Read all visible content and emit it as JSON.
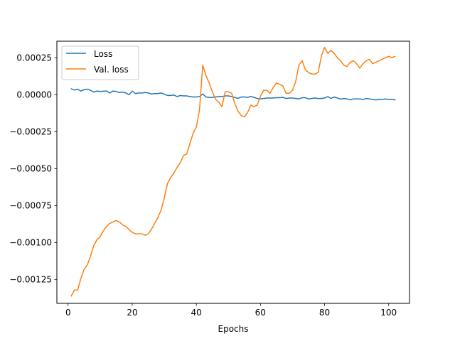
{
  "chart_data": {
    "type": "line",
    "title": "",
    "xlabel": "Epochs",
    "ylabel": "",
    "xlim": [
      -3.5,
      106.5
    ],
    "ylim": [
      -0.00141,
      0.000362
    ],
    "x_ticks": [
      0,
      20,
      40,
      60,
      80,
      100
    ],
    "x_tick_labels": [
      "0",
      "20",
      "40",
      "60",
      "80",
      "100"
    ],
    "y_ticks": [
      -0.00125,
      -0.001,
      -0.00075,
      -0.0005,
      -0.00025,
      0,
      0.00025
    ],
    "y_tick_labels": [
      "−0.00125",
      "−0.00100",
      "−0.00075",
      "−0.00050",
      "−0.00025",
      "0.00000",
      "0.00025"
    ],
    "grid": false,
    "legend_position": "upper left",
    "series": [
      {
        "name": "Loss",
        "color": "#1f77b4",
        "x": [
          1,
          2,
          3,
          4,
          5,
          6,
          7,
          8,
          9,
          10,
          11,
          12,
          13,
          14,
          15,
          16,
          17,
          18,
          19,
          20,
          21,
          22,
          23,
          24,
          25,
          26,
          27,
          28,
          29,
          30,
          31,
          32,
          33,
          34,
          35,
          36,
          37,
          38,
          39,
          40,
          41,
          42,
          43,
          44,
          45,
          46,
          47,
          48,
          49,
          50,
          51,
          52,
          53,
          54,
          55,
          56,
          57,
          58,
          59,
          60,
          61,
          62,
          63,
          64,
          65,
          66,
          67,
          68,
          69,
          70,
          71,
          72,
          73,
          74,
          75,
          76,
          77,
          78,
          79,
          80,
          81,
          82,
          83,
          84,
          85,
          86,
          87,
          88,
          89,
          90,
          91,
          92,
          93,
          94,
          95,
          96,
          97,
          98,
          99,
          100,
          101,
          102
        ],
        "y": [
          4e-05,
          3.2e-05,
          3.8e-05,
          2.5e-05,
          3.5e-05,
          3.8e-05,
          3e-05,
          1.8e-05,
          2.5e-05,
          2.2e-05,
          2.4e-05,
          2.5e-05,
          1.2e-05,
          2.5e-05,
          2.2e-05,
          1.5e-05,
          1.8e-05,
          1.2e-05,
          0.0,
          2.5e-05,
          8e-06,
          1.2e-05,
          1.2e-05,
          1.5e-05,
          1.2e-05,
          5e-06,
          8e-06,
          8e-06,
          1.2e-05,
          5e-06,
          -5e-06,
          -5e-06,
          -2e-06,
          -1.2e-05,
          -5e-06,
          -8e-06,
          -8e-06,
          -1.2e-05,
          -1.5e-05,
          -1.5e-05,
          -1.2e-05,
          5e-06,
          -1.5e-05,
          -1.8e-05,
          -1.8e-05,
          -1.5e-05,
          -1.2e-05,
          -1.2e-05,
          -8e-06,
          -8e-06,
          -1.2e-05,
          -1.8e-05,
          -2.5e-05,
          -1.5e-05,
          -1.5e-05,
          -1.8e-05,
          -1.2e-05,
          -1.8e-05,
          -2.5e-05,
          -2.8e-05,
          -2.5e-05,
          -2.2e-05,
          -2.2e-05,
          -2.2e-05,
          -2e-05,
          -2e-05,
          -1.8e-05,
          -2.5e-05,
          -2.2e-05,
          -2.2e-05,
          -2.5e-05,
          -2.8e-05,
          -2e-05,
          -2e-05,
          -2.8e-05,
          -2.5e-05,
          -2.2e-05,
          -2.5e-05,
          -2.5e-05,
          -2.2e-05,
          -1.2e-05,
          -2.5e-05,
          -1.5e-05,
          -2.2e-05,
          -3e-05,
          -2.5e-05,
          -2.8e-05,
          -3.5e-05,
          -2.8e-05,
          -2.8e-05,
          -2.8e-05,
          -3.2e-05,
          -2.5e-05,
          -2.8e-05,
          -3.2e-05,
          -3.5e-05,
          -3.2e-05,
          -3.2e-05,
          -2.8e-05,
          -3.2e-05,
          -3.2e-05,
          -3.5e-05
        ]
      },
      {
        "name": "Val. loss",
        "color": "#ff7f0e",
        "x": [
          1,
          2,
          3,
          4,
          5,
          6,
          7,
          8,
          9,
          10,
          11,
          12,
          13,
          14,
          15,
          16,
          17,
          18,
          19,
          20,
          21,
          22,
          23,
          24,
          25,
          26,
          27,
          28,
          29,
          30,
          31,
          32,
          33,
          34,
          35,
          36,
          37,
          38,
          39,
          40,
          41,
          42,
          43,
          44,
          45,
          46,
          47,
          48,
          49,
          50,
          51,
          52,
          53,
          54,
          55,
          56,
          57,
          58,
          59,
          60,
          61,
          62,
          63,
          64,
          65,
          66,
          67,
          68,
          69,
          70,
          71,
          72,
          73,
          74,
          75,
          76,
          77,
          78,
          79,
          80,
          81,
          82,
          83,
          84,
          85,
          86,
          87,
          88,
          89,
          90,
          91,
          92,
          93,
          94,
          95,
          96,
          97,
          98,
          99,
          100,
          101,
          102
        ],
        "y": [
          -0.00136,
          -0.00132,
          -0.00132,
          -0.00124,
          -0.00118,
          -0.00115,
          -0.00109,
          -0.00102,
          -0.00098,
          -0.00096,
          -0.00092,
          -0.00089,
          -0.00087,
          -0.00086,
          -0.00085,
          -0.00086,
          -0.00088,
          -0.00089,
          -0.00091,
          -0.00093,
          -0.00094,
          -0.00094,
          -0.00094,
          -0.00095,
          -0.00094,
          -0.00091,
          -0.00087,
          -0.00083,
          -0.00078,
          -0.0007,
          -0.0006,
          -0.00056,
          -0.00053,
          -0.00049,
          -0.00046,
          -0.00041,
          -0.0004,
          -0.00033,
          -0.00026,
          -0.00022,
          -0.0001,
          0.0002,
          0.00013,
          8e-05,
          2e-05,
          -3e-05,
          -5e-05,
          -8e-05,
          2e-05,
          2e-05,
          1e-05,
          -6e-05,
          -0.00011,
          -0.00014,
          -0.00015,
          -0.00012,
          -7e-05,
          -8e-05,
          -7e-05,
          -1e-05,
          3e-05,
          3e-05,
          1e-05,
          5e-05,
          8e-05,
          7e-05,
          6e-05,
          1e-05,
          1e-05,
          3e-05,
          9e-05,
          0.0002,
          0.00023,
          0.00017,
          0.00015,
          0.00014,
          0.00014,
          0.00015,
          0.00026,
          0.00032,
          0.00028,
          0.0003,
          0.00028,
          0.00025,
          0.00023,
          0.0002,
          0.00019,
          0.00022,
          0.00023,
          0.00021,
          0.00018,
          0.00021,
          0.00023,
          0.00024,
          0.00021,
          0.00022,
          0.00023,
          0.00024,
          0.00025,
          0.00026,
          0.00025,
          0.00026
        ]
      }
    ]
  }
}
